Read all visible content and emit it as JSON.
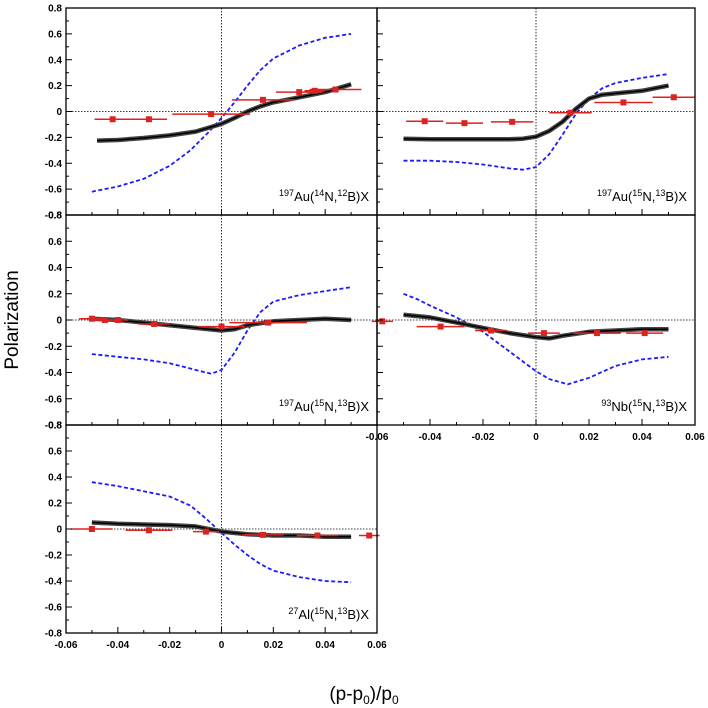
{
  "chart_data": {
    "type": "line",
    "ylabel": "Polarization",
    "xlabel_parts": [
      "(p-p",
      "0",
      ")/p",
      "0"
    ],
    "xlim": [
      -0.06,
      0.06
    ],
    "ylim": [
      -0.8,
      0.8
    ],
    "y_ticks": [
      "0.8",
      "0.6",
      "0.4",
      "0.2",
      "0",
      "-0.2",
      "-0.4",
      "-0.6",
      "-0.8"
    ],
    "x_ticks": [
      "-0.06",
      "-0.04",
      "-0.02",
      "0",
      "0.02",
      "0.04",
      "0.06"
    ],
    "colors": {
      "points": "#dd2222",
      "theory_dashed": "#1a1aff",
      "theory_solid": "#000000"
    },
    "panels": [
      {
        "id": "au14n12b",
        "label_parts": [
          "197",
          "Au(",
          "14",
          "N,",
          "12",
          "B)X"
        ],
        "points": [
          {
            "x": -0.042,
            "y": -0.06,
            "xerr": 0.007
          },
          {
            "x": -0.028,
            "y": -0.06,
            "xerr": 0.007
          },
          {
            "x": -0.004,
            "y": -0.02,
            "xerr": 0.015
          },
          {
            "x": 0.016,
            "y": 0.09,
            "xerr": 0.012
          },
          {
            "x": 0.03,
            "y": 0.15,
            "xerr": 0.009
          },
          {
            "x": 0.036,
            "y": 0.16,
            "xerr": 0.004
          },
          {
            "x": 0.044,
            "y": 0.17,
            "xerr": 0.01
          }
        ],
        "solid": [
          [
            -0.048,
            -0.225
          ],
          [
            -0.04,
            -0.22
          ],
          [
            -0.03,
            -0.205
          ],
          [
            -0.02,
            -0.185
          ],
          [
            -0.01,
            -0.155
          ],
          [
            -0.004,
            -0.12
          ],
          [
            0,
            -0.095
          ],
          [
            0.005,
            -0.05
          ],
          [
            0.01,
            0.0
          ],
          [
            0.015,
            0.04
          ],
          [
            0.02,
            0.07
          ],
          [
            0.03,
            0.11
          ],
          [
            0.04,
            0.15
          ],
          [
            0.05,
            0.21
          ]
        ],
        "dashed": [
          [
            -0.05,
            -0.62
          ],
          [
            -0.04,
            -0.58
          ],
          [
            -0.03,
            -0.52
          ],
          [
            -0.02,
            -0.42
          ],
          [
            -0.012,
            -0.3
          ],
          [
            -0.005,
            -0.16
          ],
          [
            0,
            -0.05
          ],
          [
            0.005,
            0.07
          ],
          [
            0.01,
            0.2
          ],
          [
            0.015,
            0.32
          ],
          [
            0.02,
            0.41
          ],
          [
            0.03,
            0.51
          ],
          [
            0.04,
            0.57
          ],
          [
            0.05,
            0.6
          ]
        ]
      },
      {
        "id": "au15n13b_top",
        "label_parts": [
          "197",
          "Au(",
          "15",
          "N,",
          "13",
          "B)X"
        ],
        "points": [
          {
            "x": -0.042,
            "y": -0.075,
            "xerr": 0.007
          },
          {
            "x": -0.027,
            "y": -0.09,
            "xerr": 0.007
          },
          {
            "x": -0.009,
            "y": -0.08,
            "xerr": 0.008
          },
          {
            "x": 0.013,
            "y": -0.01,
            "xerr": 0.008
          },
          {
            "x": 0.033,
            "y": 0.07,
            "xerr": 0.011
          },
          {
            "x": 0.052,
            "y": 0.11,
            "xerr": 0.008
          }
        ],
        "solid": [
          [
            -0.05,
            -0.21
          ],
          [
            -0.04,
            -0.215
          ],
          [
            -0.03,
            -0.215
          ],
          [
            -0.02,
            -0.215
          ],
          [
            -0.01,
            -0.215
          ],
          [
            -0.005,
            -0.21
          ],
          [
            0,
            -0.195
          ],
          [
            0.005,
            -0.15
          ],
          [
            0.01,
            -0.08
          ],
          [
            0.015,
            0.02
          ],
          [
            0.02,
            0.1
          ],
          [
            0.025,
            0.13
          ],
          [
            0.03,
            0.14
          ],
          [
            0.04,
            0.16
          ],
          [
            0.05,
            0.2
          ]
        ],
        "dashed": [
          [
            -0.05,
            -0.38
          ],
          [
            -0.04,
            -0.38
          ],
          [
            -0.03,
            -0.39
          ],
          [
            -0.02,
            -0.41
          ],
          [
            -0.01,
            -0.44
          ],
          [
            -0.005,
            -0.45
          ],
          [
            0,
            -0.43
          ],
          [
            0.005,
            -0.33
          ],
          [
            0.01,
            -0.18
          ],
          [
            0.015,
            -0.02
          ],
          [
            0.02,
            0.1
          ],
          [
            0.025,
            0.18
          ],
          [
            0.03,
            0.22
          ],
          [
            0.04,
            0.26
          ],
          [
            0.05,
            0.29
          ]
        ]
      },
      {
        "id": "au15n13b_mid",
        "label_parts": [
          "197",
          "Au(",
          "15",
          "N,",
          "13",
          "B)X"
        ],
        "points": [
          {
            "x": -0.05,
            "y": 0.01,
            "xerr": 0.005
          },
          {
            "x": -0.045,
            "y": 0.0,
            "xerr": 0.005
          },
          {
            "x": -0.04,
            "y": 0.0,
            "xerr": 0.004
          },
          {
            "x": -0.026,
            "y": -0.03,
            "xerr": 0.006
          },
          {
            "x": 0.0,
            "y": -0.05,
            "xerr": 0.009
          },
          {
            "x": 0.018,
            "y": -0.02,
            "xerr": 0.015
          }
        ],
        "solid": [
          [
            -0.05,
            0.01
          ],
          [
            -0.04,
            0.0
          ],
          [
            -0.03,
            -0.02
          ],
          [
            -0.02,
            -0.04
          ],
          [
            -0.01,
            -0.06
          ],
          [
            0,
            -0.08
          ],
          [
            0.005,
            -0.07
          ],
          [
            0.01,
            -0.04
          ],
          [
            0.02,
            -0.01
          ],
          [
            0.03,
            0.0
          ],
          [
            0.04,
            0.01
          ],
          [
            0.05,
            0.0
          ]
        ],
        "dashed": [
          [
            -0.05,
            -0.26
          ],
          [
            -0.04,
            -0.28
          ],
          [
            -0.03,
            -0.3
          ],
          [
            -0.02,
            -0.33
          ],
          [
            -0.01,
            -0.38
          ],
          [
            -0.004,
            -0.41
          ],
          [
            0,
            -0.38
          ],
          [
            0.005,
            -0.25
          ],
          [
            0.01,
            -0.08
          ],
          [
            0.015,
            0.06
          ],
          [
            0.02,
            0.14
          ],
          [
            0.03,
            0.19
          ],
          [
            0.04,
            0.22
          ],
          [
            0.05,
            0.25
          ]
        ]
      },
      {
        "id": "nb15n13b",
        "label_parts": [
          "93",
          "Nb(",
          "15",
          "N,",
          "13",
          "B)X"
        ],
        "points": [
          {
            "x": -0.058,
            "y": -0.01,
            "xerr": 0.004
          },
          {
            "x": -0.036,
            "y": -0.05,
            "xerr": 0.009
          },
          {
            "x": -0.017,
            "y": -0.08,
            "xerr": 0.006
          },
          {
            "x": 0.003,
            "y": -0.1,
            "xerr": 0.006
          },
          {
            "x": 0.023,
            "y": -0.1,
            "xerr": 0.009
          },
          {
            "x": 0.041,
            "y": -0.1,
            "xerr": 0.007
          }
        ],
        "solid": [
          [
            -0.05,
            0.04
          ],
          [
            -0.04,
            0.02
          ],
          [
            -0.03,
            -0.02
          ],
          [
            -0.02,
            -0.06
          ],
          [
            -0.01,
            -0.1
          ],
          [
            0,
            -0.13
          ],
          [
            0.005,
            -0.14
          ],
          [
            0.01,
            -0.12
          ],
          [
            0.02,
            -0.09
          ],
          [
            0.03,
            -0.08
          ],
          [
            0.04,
            -0.07
          ],
          [
            0.05,
            -0.07
          ]
        ],
        "dashed": [
          [
            -0.05,
            0.2
          ],
          [
            -0.045,
            0.16
          ],
          [
            -0.04,
            0.11
          ],
          [
            -0.03,
            0.02
          ],
          [
            -0.02,
            -0.09
          ],
          [
            -0.01,
            -0.24
          ],
          [
            0,
            -0.39
          ],
          [
            0.005,
            -0.45
          ],
          [
            0.012,
            -0.49
          ],
          [
            0.02,
            -0.44
          ],
          [
            0.03,
            -0.35
          ],
          [
            0.04,
            -0.3
          ],
          [
            0.05,
            -0.28
          ]
        ]
      },
      {
        "id": "al15n13b",
        "label_parts": [
          "27",
          "Al(",
          "15",
          "N,",
          "13",
          "B)X"
        ],
        "points": [
          {
            "x": -0.05,
            "y": 0.0,
            "xerr": 0.008
          },
          {
            "x": -0.028,
            "y": -0.01,
            "xerr": 0.009
          },
          {
            "x": -0.006,
            "y": -0.02,
            "xerr": 0.005
          },
          {
            "x": 0.016,
            "y": -0.045,
            "xerr": 0.008
          },
          {
            "x": 0.037,
            "y": -0.05,
            "xerr": 0.008
          },
          {
            "x": 0.057,
            "y": -0.05,
            "xerr": 0.004
          }
        ],
        "solid": [
          [
            -0.05,
            0.05
          ],
          [
            -0.04,
            0.04
          ],
          [
            -0.03,
            0.035
          ],
          [
            -0.02,
            0.03
          ],
          [
            -0.01,
            0.02
          ],
          [
            -0.005,
            0.0
          ],
          [
            0,
            -0.02
          ],
          [
            0.01,
            -0.04
          ],
          [
            0.02,
            -0.05
          ],
          [
            0.03,
            -0.05
          ],
          [
            0.04,
            -0.06
          ],
          [
            0.05,
            -0.06
          ]
        ],
        "dashed": [
          [
            -0.05,
            0.36
          ],
          [
            -0.04,
            0.33
          ],
          [
            -0.03,
            0.29
          ],
          [
            -0.02,
            0.25
          ],
          [
            -0.012,
            0.18
          ],
          [
            -0.006,
            0.08
          ],
          [
            0,
            -0.03
          ],
          [
            0.005,
            -0.12
          ],
          [
            0.01,
            -0.2
          ],
          [
            0.015,
            -0.27
          ],
          [
            0.02,
            -0.32
          ],
          [
            0.03,
            -0.37
          ],
          [
            0.04,
            -0.4
          ],
          [
            0.05,
            -0.41
          ]
        ]
      }
    ]
  }
}
